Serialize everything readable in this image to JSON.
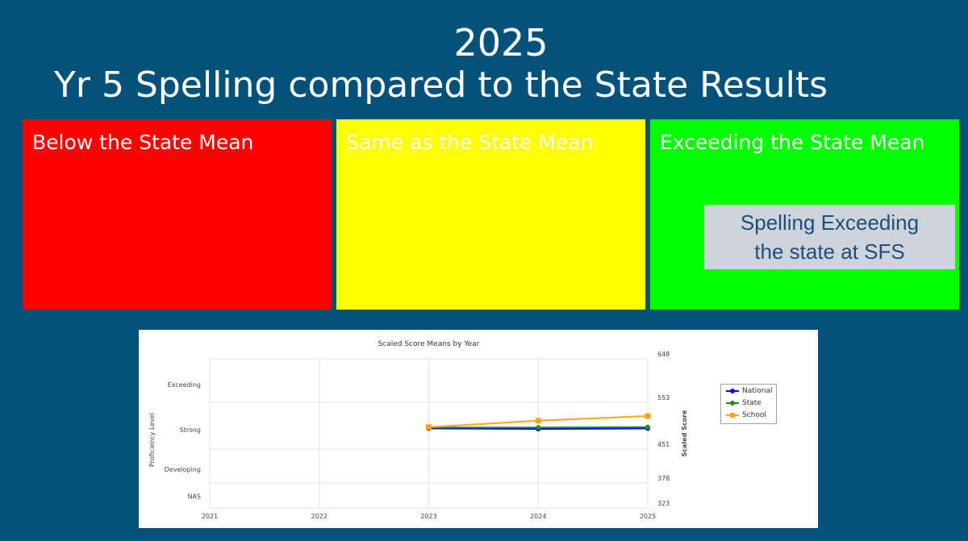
{
  "slide": {
    "year": "2025",
    "title": "Yr 5 Spelling compared to the State Results"
  },
  "panels": [
    {
      "label": "Below the State Mean",
      "color": "#ff0000"
    },
    {
      "label": "Same as the State Mean",
      "color": "#ffff00"
    },
    {
      "label": "Exceeding the State Mean",
      "color": "#00ff00"
    }
  ],
  "callout": {
    "line1": "Spelling Exceeding",
    "line2": "the state at SFS"
  },
  "chart_data": {
    "type": "line",
    "title": "Scaled Score Means by Year",
    "xlabel": "",
    "ylabel_left": "Proficiency Level",
    "ylabel_right": "Scaled Score",
    "x": [
      "2021",
      "2022",
      "2023",
      "2024",
      "2025"
    ],
    "y_ticks_right": [
      323,
      378,
      451,
      553,
      648
    ],
    "proficiency_levels": [
      "Exceeding",
      "Strong",
      "Developing",
      "NAS"
    ],
    "ylim": [
      323,
      648
    ],
    "grid": true,
    "legend_position": "right",
    "series": [
      {
        "name": "National",
        "color": "#0000ff",
        "values": [
          null,
          null,
          496,
          495,
          496
        ]
      },
      {
        "name": "State",
        "color": "#1a8f1a",
        "values": [
          null,
          null,
          498,
          498,
          499
        ]
      },
      {
        "name": "School",
        "color": "#ffa31a",
        "values": [
          null,
          null,
          499,
          513,
          523
        ]
      }
    ]
  }
}
